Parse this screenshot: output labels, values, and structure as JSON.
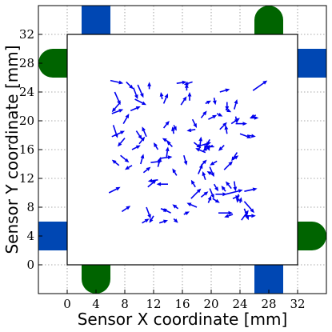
{
  "chart_data": {
    "type": "scatter",
    "subtype": "quiver",
    "xlabel": "Sensor X coordinate [mm]",
    "ylabel": "Sensor Y coordinate [mm]",
    "xlim": [
      -4,
      36
    ],
    "ylim": [
      -4,
      36
    ],
    "xticks": [
      "0",
      "4",
      "8",
      "12",
      "16",
      "20",
      "24",
      "28",
      "32"
    ],
    "yticks": [
      "0",
      "4",
      "8",
      "12",
      "16",
      "20",
      "24",
      "28",
      "32"
    ],
    "grid": true,
    "sensor_region": {
      "x": [
        0,
        32
      ],
      "y": [
        0,
        32
      ]
    },
    "colors": {
      "arrows": "#0000ee",
      "blue_pad": "#0047b3",
      "green_pad": "#006400",
      "grid": "#8c8c8c"
    },
    "pads": [
      {
        "color": "blue",
        "side": "top",
        "x_range": [
          2,
          6
        ],
        "y_range": [
          32,
          36
        ]
      },
      {
        "color": "blue",
        "side": "bottom",
        "x_range": [
          26,
          30
        ],
        "y_range": [
          -4,
          0
        ]
      },
      {
        "color": "blue",
        "side": "right",
        "x_range": [
          32,
          36
        ],
        "y_range": [
          26,
          30
        ]
      },
      {
        "color": "blue",
        "side": "left",
        "x_range": [
          -4,
          0
        ],
        "y_range": [
          2,
          6
        ]
      },
      {
        "color": "green",
        "side": "top",
        "center": [
          28,
          34
        ],
        "width": 4
      },
      {
        "color": "green",
        "side": "bottom",
        "center": [
          4,
          -2
        ],
        "width": 4
      },
      {
        "color": "green",
        "side": "left",
        "center": [
          -2,
          28
        ],
        "width": 4
      },
      {
        "color": "green",
        "side": "right",
        "center": [
          34,
          4
        ],
        "width": 4
      }
    ],
    "arrows": [
      {
        "x": 6.0,
        "y": 25.6,
        "u": 1.8,
        "v": -0.4
      },
      {
        "x": 6.6,
        "y": 24.0,
        "u": 0.8,
        "v": -1.8
      },
      {
        "x": 7.4,
        "y": 22.6,
        "u": -1.2,
        "v": -1.4
      },
      {
        "x": 6.2,
        "y": 21.0,
        "u": 1.6,
        "v": 0.6
      },
      {
        "x": 6.4,
        "y": 19.4,
        "u": 0.6,
        "v": -1.8
      },
      {
        "x": 6.2,
        "y": 17.8,
        "u": 1.8,
        "v": 0.8
      },
      {
        "x": 7.8,
        "y": 19.6,
        "u": 0.8,
        "v": 1.4
      },
      {
        "x": 8.0,
        "y": 17.6,
        "u": -1.0,
        "v": -1.2
      },
      {
        "x": 8.2,
        "y": 25.4,
        "u": 1.0,
        "v": -1.0
      },
      {
        "x": 9.2,
        "y": 24.6,
        "u": 0.6,
        "v": -1.6
      },
      {
        "x": 9.4,
        "y": 23.0,
        "u": 1.6,
        "v": -0.8
      },
      {
        "x": 9.8,
        "y": 25.0,
        "u": 0.8,
        "v": -1.8
      },
      {
        "x": 11.4,
        "y": 24.4,
        "u": 0.0,
        "v": 1.0
      },
      {
        "x": 8.8,
        "y": 21.4,
        "u": 1.4,
        "v": 0.6
      },
      {
        "x": 9.6,
        "y": 18.6,
        "u": 0.8,
        "v": -1.2
      },
      {
        "x": 10.0,
        "y": 16.8,
        "u": 0.8,
        "v": 1.0
      },
      {
        "x": 9.0,
        "y": 16.0,
        "u": 1.2,
        "v": 0.6
      },
      {
        "x": 11.0,
        "y": 17.8,
        "u": -0.6,
        "v": 1.4
      },
      {
        "x": 7.4,
        "y": 15.2,
        "u": 1.2,
        "v": -1.0
      },
      {
        "x": 7.2,
        "y": 13.8,
        "u": -1.0,
        "v": 0.8
      },
      {
        "x": 9.0,
        "y": 13.8,
        "u": -1.0,
        "v": -0.6
      },
      {
        "x": 10.2,
        "y": 14.0,
        "u": 0.4,
        "v": 1.4
      },
      {
        "x": 10.6,
        "y": 12.8,
        "u": 1.0,
        "v": 0.8
      },
      {
        "x": 11.6,
        "y": 14.2,
        "u": 1.6,
        "v": 0.2
      },
      {
        "x": 12.6,
        "y": 13.6,
        "u": 0.4,
        "v": 1.4
      },
      {
        "x": 13.0,
        "y": 14.8,
        "u": 1.6,
        "v": 0.2
      },
      {
        "x": 12.6,
        "y": 16.0,
        "u": -0.6,
        "v": 1.0
      },
      {
        "x": 14.2,
        "y": 17.0,
        "u": -1.0,
        "v": 0.6
      },
      {
        "x": 13.8,
        "y": 15.0,
        "u": 0.2,
        "v": 1.4
      },
      {
        "x": 13.4,
        "y": 19.0,
        "u": 0.8,
        "v": 1.0
      },
      {
        "x": 13.4,
        "y": 22.4,
        "u": 0.6,
        "v": 1.4
      },
      {
        "x": 13.2,
        "y": 23.0,
        "u": -0.2,
        "v": 1.0
      },
      {
        "x": 15.2,
        "y": 25.2,
        "u": 1.4,
        "v": 0.2
      },
      {
        "x": 17.4,
        "y": 25.4,
        "u": -1.2,
        "v": -0.4
      },
      {
        "x": 15.8,
        "y": 22.2,
        "u": 0.8,
        "v": 1.2
      },
      {
        "x": 17.0,
        "y": 22.8,
        "u": 0.0,
        "v": 1.2
      },
      {
        "x": 16.6,
        "y": 24.2,
        "u": 0.0,
        "v": 1.0
      },
      {
        "x": 14.8,
        "y": 19.4,
        "u": 0.4,
        "v": -0.8
      },
      {
        "x": 14.8,
        "y": 18.2,
        "u": -0.2,
        "v": 1.0
      },
      {
        "x": 14.6,
        "y": 16.4,
        "u": -0.8,
        "v": 0.8
      },
      {
        "x": 16.2,
        "y": 15.2,
        "u": 0.4,
        "v": -1.4
      },
      {
        "x": 15.2,
        "y": 12.4,
        "u": -0.6,
        "v": 1.0
      },
      {
        "x": 14.0,
        "y": 11.2,
        "u": -1.6,
        "v": 0.0
      },
      {
        "x": 12.6,
        "y": 11.8,
        "u": -1.4,
        "v": -0.2
      },
      {
        "x": 11.2,
        "y": 10.8,
        "u": 1.2,
        "v": 1.0
      },
      {
        "x": 5.8,
        "y": 10.0,
        "u": 1.6,
        "v": 0.8
      },
      {
        "x": 7.6,
        "y": 7.4,
        "u": 1.2,
        "v": 0.8
      },
      {
        "x": 11.0,
        "y": 8.0,
        "u": 0.6,
        "v": -1.6
      },
      {
        "x": 12.0,
        "y": 6.8,
        "u": -0.6,
        "v": -1.0
      },
      {
        "x": 13.0,
        "y": 7.8,
        "u": 1.0,
        "v": -0.4
      },
      {
        "x": 14.4,
        "y": 7.2,
        "u": -1.2,
        "v": 0.6
      },
      {
        "x": 15.4,
        "y": 7.8,
        "u": -0.8,
        "v": 0.6
      },
      {
        "x": 16.2,
        "y": 7.0,
        "u": 0.8,
        "v": 0.4
      },
      {
        "x": 18.0,
        "y": 8.0,
        "u": -1.4,
        "v": 0.6
      },
      {
        "x": 12.8,
        "y": 5.8,
        "u": 1.2,
        "v": 0.4
      },
      {
        "x": 10.4,
        "y": 5.8,
        "u": 1.0,
        "v": 0.6
      },
      {
        "x": 14.8,
        "y": 6.4,
        "u": 0.6,
        "v": -0.6
      },
      {
        "x": 17.2,
        "y": 9.2,
        "u": 1.4,
        "v": 1.4
      },
      {
        "x": 17.8,
        "y": 10.8,
        "u": -0.6,
        "v": 1.0
      },
      {
        "x": 18.6,
        "y": 9.4,
        "u": 1.0,
        "v": 0.8
      },
      {
        "x": 19.8,
        "y": 10.6,
        "u": 0.6,
        "v": -1.4
      },
      {
        "x": 19.6,
        "y": 8.6,
        "u": 0.4,
        "v": 1.0
      },
      {
        "x": 20.4,
        "y": 11.2,
        "u": 0.6,
        "v": -1.0
      },
      {
        "x": 20.4,
        "y": 12.4,
        "u": -1.0,
        "v": 0.6
      },
      {
        "x": 20.2,
        "y": 9.2,
        "u": 1.0,
        "v": -0.6
      },
      {
        "x": 19.2,
        "y": 11.8,
        "u": -0.4,
        "v": 1.2
      },
      {
        "x": 18.2,
        "y": 12.6,
        "u": 0.6,
        "v": 1.4
      },
      {
        "x": 18.6,
        "y": 13.8,
        "u": 0.8,
        "v": 0.8
      },
      {
        "x": 19.8,
        "y": 13.6,
        "u": 0.6,
        "v": -1.4
      },
      {
        "x": 20.8,
        "y": 14.4,
        "u": -1.0,
        "v": -0.6
      },
      {
        "x": 20.6,
        "y": 9.8,
        "u": 1.6,
        "v": 0.0
      },
      {
        "x": 21.0,
        "y": 7.2,
        "u": 2.0,
        "v": 0.0
      },
      {
        "x": 23.0,
        "y": 7.0,
        "u": -1.2,
        "v": -0.4
      },
      {
        "x": 22.0,
        "y": 10.2,
        "u": -0.6,
        "v": 0.8
      },
      {
        "x": 23.0,
        "y": 9.2,
        "u": 1.0,
        "v": 0.4
      },
      {
        "x": 22.0,
        "y": 9.8,
        "u": 2.4,
        "v": 0.6
      },
      {
        "x": 24.6,
        "y": 10.2,
        "u": 1.8,
        "v": 0.4
      },
      {
        "x": 22.8,
        "y": 10.6,
        "u": -0.8,
        "v": 1.0
      },
      {
        "x": 23.8,
        "y": 9.8,
        "u": -0.2,
        "v": -1.2
      },
      {
        "x": 23.2,
        "y": 11.6,
        "u": 0.2,
        "v": -1.4
      },
      {
        "x": 24.0,
        "y": 8.6,
        "u": 0.2,
        "v": 0.8
      },
      {
        "x": 24.6,
        "y": 8.8,
        "u": 1.4,
        "v": -1.6
      },
      {
        "x": 24.2,
        "y": 6.2,
        "u": 1.0,
        "v": 1.4
      },
      {
        "x": 24.6,
        "y": 7.8,
        "u": 0.6,
        "v": -1.6
      },
      {
        "x": 24.6,
        "y": 6.8,
        "u": 1.6,
        "v": 0.0
      },
      {
        "x": 17.6,
        "y": 17.0,
        "u": 1.0,
        "v": -0.8
      },
      {
        "x": 18.4,
        "y": 16.2,
        "u": 0.2,
        "v": 1.6
      },
      {
        "x": 18.0,
        "y": 16.4,
        "u": 2.0,
        "v": 0.6
      },
      {
        "x": 20.2,
        "y": 16.6,
        "u": -1.4,
        "v": -0.8
      },
      {
        "x": 19.2,
        "y": 15.6,
        "u": -1.4,
        "v": 0.6
      },
      {
        "x": 19.8,
        "y": 17.4,
        "u": -0.8,
        "v": -1.4
      },
      {
        "x": 20.4,
        "y": 16.4,
        "u": -1.2,
        "v": 0.0
      },
      {
        "x": 19.4,
        "y": 16.6,
        "u": 0.4,
        "v": -0.8
      },
      {
        "x": 17.8,
        "y": 18.8,
        "u": -1.2,
        "v": -0.2
      },
      {
        "x": 17.4,
        "y": 20.2,
        "u": 0.6,
        "v": -1.2
      },
      {
        "x": 18.6,
        "y": 20.4,
        "u": 0.8,
        "v": 1.0
      },
      {
        "x": 19.6,
        "y": 20.2,
        "u": 1.2,
        "v": 0.6
      },
      {
        "x": 20.8,
        "y": 21.0,
        "u": 0.8,
        "v": -0.4
      },
      {
        "x": 19.2,
        "y": 22.4,
        "u": 0.8,
        "v": 0.4
      },
      {
        "x": 20.4,
        "y": 23.2,
        "u": 0.2,
        "v": -1.0
      },
      {
        "x": 21.2,
        "y": 24.0,
        "u": 1.4,
        "v": 0.4
      },
      {
        "x": 21.2,
        "y": 18.8,
        "u": 1.0,
        "v": 1.0
      },
      {
        "x": 21.8,
        "y": 16.6,
        "u": -0.8,
        "v": -0.8
      },
      {
        "x": 22.2,
        "y": 18.2,
        "u": -0.2,
        "v": 1.2
      },
      {
        "x": 22.8,
        "y": 19.6,
        "u": 1.2,
        "v": 0.8
      },
      {
        "x": 23.4,
        "y": 20.6,
        "u": 0.2,
        "v": -1.0
      },
      {
        "x": 22.0,
        "y": 21.6,
        "u": 0.8,
        "v": -0.4
      },
      {
        "x": 22.2,
        "y": 22.6,
        "u": 0.0,
        "v": -1.2
      },
      {
        "x": 23.2,
        "y": 21.6,
        "u": 0.4,
        "v": 1.4
      },
      {
        "x": 23.4,
        "y": 19.6,
        "u": 1.6,
        "v": 0.0
      },
      {
        "x": 24.0,
        "y": 18.2,
        "u": 1.6,
        "v": -0.6
      },
      {
        "x": 25.4,
        "y": 20.4,
        "u": 1.2,
        "v": 0.0
      },
      {
        "x": 25.0,
        "y": 18.0,
        "u": 1.2,
        "v": -0.2
      },
      {
        "x": 26.2,
        "y": 20.8,
        "u": -0.8,
        "v": -0.4
      },
      {
        "x": 25.8,
        "y": 24.2,
        "u": 2.0,
        "v": 1.4
      },
      {
        "x": 23.6,
        "y": 15.6,
        "u": -0.8,
        "v": -1.2
      },
      {
        "x": 23.0,
        "y": 14.6,
        "u": 0.8,
        "v": 0.6
      },
      {
        "x": 21.8,
        "y": 13.2,
        "u": 1.2,
        "v": 1.2
      }
    ]
  }
}
